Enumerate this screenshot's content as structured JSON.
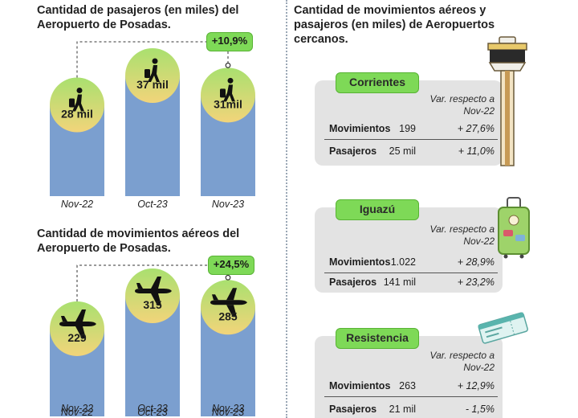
{
  "passengers_heading": "Cantidad de pasajeros (en miles) del Aeropuerto de Posadas.",
  "movements_heading": "Cantidad de movimientos aéreos del Aeropuerto de Posadas.",
  "nearby_heading": "Cantidad de movimientos aéreos y pasajeros (en miles) de Aeropuertos cercanos.",
  "colors": {
    "bar": "#7b9fcf",
    "badge": "#7ed957",
    "card": "#e3e3e3",
    "bubble_top": "#a9e06f",
    "bubble_bottom": "#f2d47a"
  },
  "chart_data": [
    {
      "type": "bar",
      "title": "Cantidad de pasajeros (en miles) del Aeropuerto de Posadas.",
      "categories": [
        "Nov-22",
        "Oct-23",
        "Nov-23"
      ],
      "values": [
        28,
        37,
        31
      ],
      "value_labels": [
        "28 mil",
        "37 mil",
        "31mil"
      ],
      "icon": "walking-traveler-icon",
      "change_annotation": "+10,9%",
      "change_between": [
        "Nov-22",
        "Nov-23"
      ]
    },
    {
      "type": "bar",
      "title": "Cantidad de movimientos aéreos del Aeropuerto de Posadas.",
      "categories": [
        "Nov-22",
        "Oct-23",
        "Nov-23"
      ],
      "values": [
        229,
        315,
        285
      ],
      "value_labels": [
        "229",
        "315",
        "285"
      ],
      "icon": "airplane-icon",
      "change_annotation": "+24,5%",
      "change_between": [
        "Nov-22",
        "Nov-23"
      ]
    }
  ],
  "airports": [
    {
      "name": "Corrientes",
      "note": "Var. respecto a Nov-22",
      "icon": "control-tower-icon",
      "rows": [
        {
          "label": "Movimientos",
          "value": "199",
          "variation": "+ 27,6%"
        },
        {
          "label": "Pasajeros",
          "value": "25 mil",
          "variation": "+ 11,0%"
        }
      ]
    },
    {
      "name": "Iguazú",
      "note": "Var. respecto a Nov-22",
      "icon": "suitcase-icon",
      "rows": [
        {
          "label": "Movimientos",
          "value": "1.022",
          "variation": "+ 28,9%"
        },
        {
          "label": "Pasajeros",
          "value": "141 mil",
          "variation": "+ 23,2%"
        }
      ]
    },
    {
      "name": "Resistencia",
      "note": "Var. respecto a Nov-22",
      "icon": "boarding-pass-icon",
      "rows": [
        {
          "label": "Movimientos",
          "value": "263",
          "variation": "+ 12,9%"
        },
        {
          "label": "Pasajeros",
          "value": "21 mil",
          "variation": "- 1,5%"
        }
      ]
    }
  ]
}
